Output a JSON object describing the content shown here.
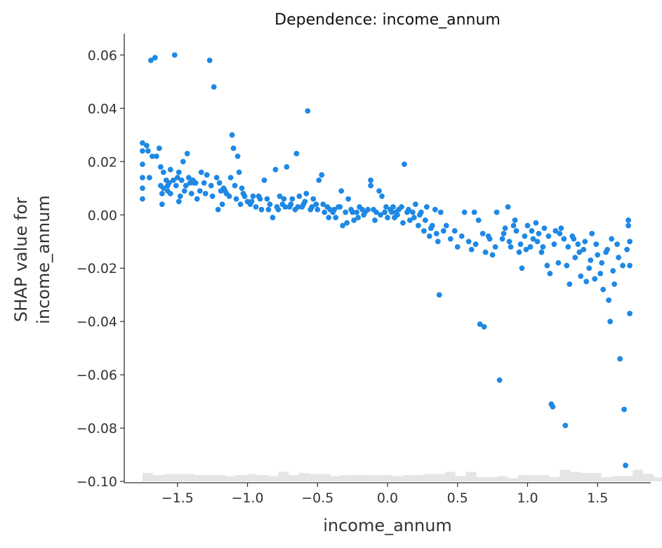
{
  "chart_data": {
    "type": "scatter",
    "title": "Dependence: income_annum",
    "xlabel": "income_annum",
    "ylabel": [
      "SHAP value for",
      "income_annum"
    ],
    "xlim": [
      -1.88,
      1.88
    ],
    "ylim": [
      -0.1005,
      0.068
    ],
    "x_ticks": [
      -1.5,
      -1.0,
      -0.5,
      0.0,
      0.5,
      1.0,
      1.5
    ],
    "x_tick_labels": [
      "−1.5",
      "−1.0",
      "−0.5",
      "0.0",
      "0.5",
      "1.0",
      "1.5"
    ],
    "y_ticks": [
      0.06,
      0.04,
      0.02,
      0.0,
      -0.02,
      -0.04,
      -0.06,
      -0.08,
      -0.1
    ],
    "y_tick_labels": [
      "0.06",
      "0.04",
      "0.02",
      "0.00",
      "−0.02",
      "−0.04",
      "−0.06",
      "−0.08",
      "−0.10"
    ],
    "grid": false,
    "colors": {
      "point": "#1e88e5",
      "histogram": "#e5e5e5",
      "axis": "#333333"
    },
    "histogram": {
      "x_start": -1.75,
      "bin_width": 0.0745,
      "counts": [
        8,
        6,
        7,
        7,
        7,
        6,
        6,
        6,
        5,
        6,
        7,
        6,
        5,
        9,
        6,
        8,
        7,
        7,
        5,
        6,
        6,
        6,
        6,
        6,
        5,
        6,
        6,
        7,
        7,
        9,
        5,
        9,
        4,
        4,
        5,
        3,
        6,
        6,
        6,
        4,
        11,
        9,
        8,
        8,
        4,
        5,
        5,
        11,
        7,
        4,
        3,
        7
      ]
    },
    "series": [
      {
        "points": [
          [
            -1.75,
            0.027
          ],
          [
            -1.75,
            0.024
          ],
          [
            -1.75,
            0.019
          ],
          [
            -1.75,
            0.014
          ],
          [
            -1.75,
            0.01
          ],
          [
            -1.75,
            0.006
          ],
          [
            -1.72,
            0.026
          ],
          [
            -1.71,
            0.024
          ],
          [
            -1.7,
            0.014
          ],
          [
            -1.69,
            0.058
          ],
          [
            -1.66,
            0.059
          ],
          [
            -1.65,
            0.022
          ],
          [
            -1.63,
            0.025
          ],
          [
            -1.62,
            0.018
          ],
          [
            -1.62,
            0.011
          ],
          [
            -1.61,
            0.008
          ],
          [
            -1.61,
            0.004
          ],
          [
            -1.6,
            0.016
          ],
          [
            -1.6,
            0.01
          ],
          [
            -1.58,
            0.013
          ],
          [
            -1.57,
            0.009
          ],
          [
            -1.56,
            0.012
          ],
          [
            -1.55,
            0.017
          ],
          [
            -1.55,
            0.008
          ],
          [
            -1.53,
            0.013
          ],
          [
            -1.52,
            0.06
          ],
          [
            -1.51,
            0.011
          ],
          [
            -1.5,
            0.014
          ],
          [
            -1.49,
            0.016
          ],
          [
            -1.49,
            0.005
          ],
          [
            -1.48,
            0.007
          ],
          [
            -1.47,
            0.013
          ],
          [
            -1.46,
            0.02
          ],
          [
            -1.45,
            0.009
          ],
          [
            -1.44,
            0.011
          ],
          [
            -1.43,
            0.023
          ],
          [
            -1.42,
            0.014
          ],
          [
            -1.41,
            0.012
          ],
          [
            -1.4,
            0.008
          ],
          [
            -1.39,
            0.013
          ],
          [
            -1.37,
            0.012
          ],
          [
            -1.36,
            0.006
          ],
          [
            -1.34,
            0.009
          ],
          [
            -1.33,
            0.016
          ],
          [
            -1.31,
            0.012
          ],
          [
            -1.3,
            0.008
          ],
          [
            -1.29,
            0.015
          ],
          [
            -1.27,
            0.058
          ],
          [
            -1.26,
            0.011
          ],
          [
            -1.24,
            0.048
          ],
          [
            -1.22,
            0.014
          ],
          [
            -1.21,
            0.002
          ],
          [
            -1.2,
            0.012
          ],
          [
            -1.19,
            0.009
          ],
          [
            -1.18,
            0.004
          ],
          [
            -1.17,
            0.01
          ],
          [
            -1.15,
            0.008
          ],
          [
            -1.13,
            0.007
          ],
          [
            -1.12,
            0.014
          ],
          [
            -1.11,
            0.03
          ],
          [
            -1.1,
            0.025
          ],
          [
            -1.09,
            0.011
          ],
          [
            -1.08,
            0.006
          ],
          [
            -1.07,
            0.022
          ],
          [
            -1.06,
            0.016
          ],
          [
            -1.05,
            0.004
          ],
          [
            -1.04,
            0.01
          ],
          [
            -1.02,
            0.007
          ],
          [
            -1.0,
            0.005
          ],
          [
            -0.98,
            0.004
          ],
          [
            -0.96,
            0.007
          ],
          [
            -0.94,
            0.003
          ],
          [
            -0.92,
            0.007
          ],
          [
            -0.9,
            0.002
          ],
          [
            -0.88,
            0.013
          ],
          [
            -0.86,
            0.006
          ],
          [
            -0.84,
            0.004
          ],
          [
            -0.82,
            -0.001
          ],
          [
            -0.8,
            0.017
          ],
          [
            -0.78,
            0.002
          ],
          [
            -0.77,
            0.007
          ],
          [
            -0.75,
            0.004
          ],
          [
            -0.73,
            0.003
          ],
          [
            -0.72,
            0.018
          ],
          [
            -0.7,
            0.003
          ],
          [
            -0.68,
            0.006
          ],
          [
            -0.66,
            0.002
          ],
          [
            -0.65,
            0.023
          ],
          [
            -0.63,
            0.007
          ],
          [
            -0.61,
            0.003
          ],
          [
            -0.6,
            0.004
          ],
          [
            -0.58,
            0.008
          ],
          [
            -0.57,
            0.039
          ],
          [
            -0.55,
            0.002
          ],
          [
            -0.53,
            0.006
          ],
          [
            -0.51,
            0.004
          ],
          [
            -0.49,
            0.013
          ],
          [
            -0.47,
            0.015
          ],
          [
            -0.45,
            0.001
          ],
          [
            -0.43,
            0.003
          ],
          [
            -0.41,
            0.002
          ],
          [
            -0.39,
            0.001
          ],
          [
            -0.37,
            -0.001
          ],
          [
            -0.35,
            0.003
          ],
          [
            -0.33,
            0.009
          ],
          [
            -0.32,
            -0.004
          ],
          [
            -0.3,
            0.001
          ],
          [
            -0.28,
            0.006
          ],
          [
            -0.26,
            0.002
          ],
          [
            -0.24,
            -0.002
          ],
          [
            -0.22,
            0.001
          ],
          [
            -0.2,
            0.003
          ],
          [
            -0.18,
            0.002
          ],
          [
            -0.16,
            0.001
          ],
          [
            -0.12,
            0.013
          ],
          [
            -0.12,
            0.011
          ],
          [
            -0.1,
            0.002
          ],
          [
            -0.08,
            0.001
          ],
          [
            -0.06,
            0.009
          ],
          [
            -0.04,
            0.007
          ],
          [
            -0.02,
            0.001
          ],
          [
            0.0,
            -0.001
          ],
          [
            0.02,
            0.002
          ],
          [
            0.04,
            0.003
          ],
          [
            0.05,
            -0.001
          ],
          [
            0.06,
            0.001
          ],
          [
            0.08,
            0.002
          ],
          [
            0.1,
            0.003
          ],
          [
            0.12,
            0.019
          ],
          [
            0.14,
            0.001
          ],
          [
            0.16,
            -0.002
          ],
          [
            0.18,
            0.001
          ],
          [
            0.2,
            0.004
          ],
          [
            0.22,
            -0.004
          ],
          [
            0.24,
            0.001
          ],
          [
            0.26,
            -0.006
          ],
          [
            0.28,
            0.003
          ],
          [
            0.3,
            -0.008
          ],
          [
            0.32,
            -0.004
          ],
          [
            0.34,
            0.002
          ],
          [
            0.36,
            -0.01
          ],
          [
            0.37,
            -0.03
          ],
          [
            0.38,
            0.001
          ],
          [
            0.4,
            -0.006
          ],
          [
            0.45,
            -0.009
          ],
          [
            0.5,
            -0.012
          ],
          [
            0.55,
            0.001
          ],
          [
            0.6,
            -0.013
          ],
          [
            0.62,
            0.001
          ],
          [
            0.65,
            -0.002
          ],
          [
            0.66,
            -0.041
          ],
          [
            0.69,
            -0.042
          ],
          [
            0.7,
            -0.014
          ],
          [
            0.72,
            -0.008
          ],
          [
            0.75,
            -0.015
          ],
          [
            0.78,
            0.001
          ],
          [
            0.8,
            -0.062
          ],
          [
            0.82,
            -0.009
          ],
          [
            0.84,
            -0.005
          ],
          [
            0.86,
            0.003
          ],
          [
            0.88,
            -0.012
          ],
          [
            0.9,
            -0.004
          ],
          [
            0.92,
            -0.006
          ],
          [
            0.94,
            -0.014
          ],
          [
            0.96,
            -0.02
          ],
          [
            0.98,
            -0.008
          ],
          [
            1.0,
            -0.004
          ],
          [
            1.02,
            -0.012
          ],
          [
            1.04,
            -0.009
          ],
          [
            1.06,
            -0.003
          ],
          [
            1.08,
            -0.007
          ],
          [
            1.1,
            -0.014
          ],
          [
            1.12,
            -0.005
          ],
          [
            1.14,
            -0.019
          ],
          [
            1.16,
            -0.022
          ],
          [
            1.17,
            -0.071
          ],
          [
            1.18,
            -0.072
          ],
          [
            1.2,
            -0.006
          ],
          [
            1.22,
            -0.018
          ],
          [
            1.24,
            -0.005
          ],
          [
            1.26,
            -0.009
          ],
          [
            1.27,
            -0.079
          ],
          [
            1.28,
            -0.019
          ],
          [
            1.3,
            -0.026
          ],
          [
            1.32,
            -0.008
          ],
          [
            1.34,
            -0.016
          ],
          [
            1.36,
            -0.011
          ],
          [
            1.38,
            -0.023
          ],
          [
            1.4,
            -0.013
          ],
          [
            1.42,
            -0.025
          ],
          [
            1.44,
            -0.02
          ],
          [
            1.46,
            -0.007
          ],
          [
            1.48,
            -0.024
          ],
          [
            1.5,
            -0.015
          ],
          [
            1.52,
            -0.022
          ],
          [
            1.54,
            -0.028
          ],
          [
            1.56,
            -0.014
          ],
          [
            1.58,
            -0.032
          ],
          [
            1.59,
            -0.04
          ],
          [
            1.6,
            -0.009
          ],
          [
            1.62,
            -0.026
          ],
          [
            1.64,
            -0.011
          ],
          [
            1.66,
            -0.054
          ],
          [
            1.68,
            -0.019
          ],
          [
            1.69,
            -0.073
          ],
          [
            1.7,
            -0.094
          ],
          [
            1.72,
            -0.002
          ],
          [
            1.72,
            -0.004
          ],
          [
            1.73,
            -0.01
          ],
          [
            1.73,
            -0.019
          ],
          [
            1.73,
            -0.037
          ],
          [
            -1.68,
            0.022
          ],
          [
            -1.57,
            0.011
          ],
          [
            -1.38,
            0.012
          ],
          [
            -1.25,
            0.007
          ],
          [
            -1.16,
            0.009
          ],
          [
            -1.03,
            0.008
          ],
          [
            -0.97,
            0.005
          ],
          [
            -0.91,
            0.006
          ],
          [
            -0.85,
            0.002
          ],
          [
            -0.79,
            0.003
          ],
          [
            -0.74,
            0.006
          ],
          [
            -0.69,
            0.004
          ],
          [
            -0.64,
            0.003
          ],
          [
            -0.59,
            0.005
          ],
          [
            -0.54,
            0.003
          ],
          [
            -0.5,
            0.002
          ],
          [
            -0.46,
            0.004
          ],
          [
            -0.42,
            -0.001
          ],
          [
            -0.38,
            0.002
          ],
          [
            -0.34,
            0.003
          ],
          [
            -0.29,
            -0.003
          ],
          [
            -0.25,
            0.001
          ],
          [
            -0.21,
            -0.001
          ],
          [
            -0.17,
            0.0
          ],
          [
            -0.14,
            0.002
          ],
          [
            -0.09,
            -0.002
          ],
          [
            -0.05,
            0.0
          ],
          [
            -0.01,
            0.003
          ],
          [
            0.03,
            0.001
          ],
          [
            0.07,
            0.0
          ],
          [
            0.11,
            -0.003
          ],
          [
            0.15,
            0.002
          ],
          [
            0.19,
            -0.001
          ],
          [
            0.23,
            0.0
          ],
          [
            0.27,
            -0.002
          ],
          [
            0.31,
            -0.005
          ],
          [
            0.35,
            -0.007
          ],
          [
            0.42,
            -0.004
          ],
          [
            0.48,
            -0.006
          ],
          [
            0.53,
            -0.008
          ],
          [
            0.58,
            -0.01
          ],
          [
            0.63,
            -0.011
          ],
          [
            0.68,
            -0.007
          ],
          [
            0.73,
            -0.009
          ],
          [
            0.77,
            -0.012
          ],
          [
            0.83,
            -0.007
          ],
          [
            0.87,
            -0.01
          ],
          [
            0.91,
            -0.002
          ],
          [
            0.95,
            -0.011
          ],
          [
            0.99,
            -0.013
          ],
          [
            1.03,
            -0.006
          ],
          [
            1.07,
            -0.01
          ],
          [
            1.11,
            -0.012
          ],
          [
            1.15,
            -0.008
          ],
          [
            1.19,
            -0.011
          ],
          [
            1.23,
            -0.007
          ],
          [
            1.29,
            -0.012
          ],
          [
            1.33,
            -0.009
          ],
          [
            1.37,
            -0.014
          ],
          [
            1.41,
            -0.01
          ],
          [
            1.45,
            -0.017
          ],
          [
            1.49,
            -0.011
          ],
          [
            1.53,
            -0.018
          ],
          [
            1.57,
            -0.013
          ],
          [
            1.61,
            -0.021
          ],
          [
            1.65,
            -0.016
          ],
          [
            1.71,
            -0.013
          ]
        ]
      }
    ]
  }
}
